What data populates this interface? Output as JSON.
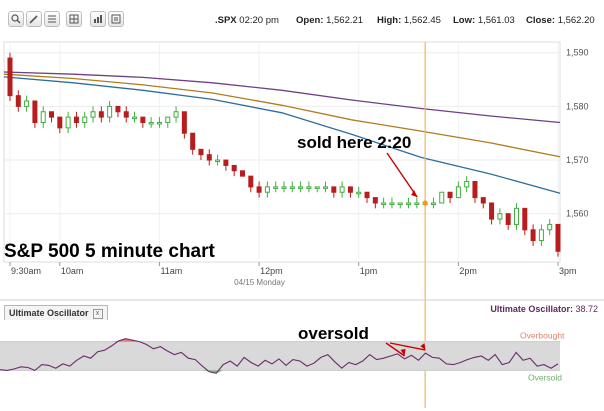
{
  "toolbar": {
    "buttons": [
      {
        "icon": "zoom-icon"
      },
      {
        "icon": "pencil-icon"
      },
      {
        "icon": "list-icon"
      },
      {
        "icon": "grid-icon"
      },
      {
        "icon": "bar-chart-icon"
      },
      {
        "icon": "properties-icon"
      }
    ]
  },
  "quote": {
    "symbol": ".SPX",
    "time": "02:20 pm",
    "open_label": "Open:",
    "open": "1,562.21",
    "high_label": "High:",
    "high": "1,562.45",
    "low_label": "Low:",
    "low": "1,561.03",
    "close_label": "Close:",
    "close": "1,562.20"
  },
  "oscillator": {
    "tab_label": "Ultimate Oscillator",
    "tab_close": "x",
    "value_label": "Ultimate Oscillator:",
    "value": "38.72"
  },
  "chart_data": {
    "type": "candlestick",
    "title": "S&P 500 5 minute chart",
    "x_ticks": [
      "9:30am",
      "10am",
      "11am",
      "12pm",
      "1pm",
      "2pm",
      "3pm"
    ],
    "date_label": "04/15 Monday",
    "y_ticks": [
      1560,
      1570,
      1580,
      1590
    ],
    "ylim": [
      1551,
      1592
    ],
    "annotations": [
      {
        "text": "sold here 2:20",
        "bar": 50
      },
      {
        "text": "oversold",
        "bars": [
          48,
          50
        ]
      }
    ],
    "candles": [
      [
        1589,
        1590,
        1581,
        1582
      ],
      [
        1582,
        1583,
        1579,
        1580
      ],
      [
        1580,
        1582,
        1579,
        1581
      ],
      [
        1581,
        1581,
        1576,
        1577
      ],
      [
        1577,
        1580,
        1576,
        1579
      ],
      [
        1579,
        1579,
        1577,
        1578
      ],
      [
        1578,
        1578,
        1575,
        1576
      ],
      [
        1576,
        1579,
        1575,
        1578
      ],
      [
        1578,
        1579,
        1576,
        1577
      ],
      [
        1577,
        1579,
        1576,
        1578
      ],
      [
        1578,
        1580,
        1577,
        1579
      ],
      [
        1579,
        1580,
        1577,
        1578
      ],
      [
        1578,
        1581,
        1577,
        1580
      ],
      [
        1580,
        1580,
        1578,
        1579
      ],
      [
        1579,
        1580,
        1577,
        1578
      ],
      [
        1578,
        1579,
        1577,
        1578
      ],
      [
        1578,
        1578,
        1576,
        1577
      ],
      [
        1577,
        1578,
        1576,
        1577
      ],
      [
        1577,
        1578,
        1576,
        1577
      ],
      [
        1577,
        1578,
        1576,
        1578
      ],
      [
        1578,
        1580,
        1577,
        1579
      ],
      [
        1579,
        1579,
        1574,
        1575
      ],
      [
        1575,
        1575,
        1571,
        1572
      ],
      [
        1572,
        1572,
        1570,
        1571
      ],
      [
        1571,
        1572,
        1569,
        1570
      ],
      [
        1570,
        1571,
        1569,
        1570
      ],
      [
        1570,
        1570,
        1568,
        1569
      ],
      [
        1569,
        1569,
        1567,
        1568
      ],
      [
        1568,
        1568,
        1567,
        1567
      ],
      [
        1567,
        1567,
        1564,
        1565
      ],
      [
        1565,
        1566,
        1563,
        1564
      ],
      [
        1564,
        1566,
        1563,
        1565
      ],
      [
        1565,
        1566,
        1564,
        1565
      ],
      [
        1565,
        1566,
        1564,
        1565
      ],
      [
        1565,
        1566,
        1564,
        1565
      ],
      [
        1565,
        1566,
        1564,
        1565
      ],
      [
        1565,
        1566,
        1564,
        1565
      ],
      [
        1565,
        1565,
        1564,
        1565
      ],
      [
        1565,
        1566,
        1564,
        1565
      ],
      [
        1565,
        1565,
        1563,
        1564
      ],
      [
        1564,
        1566,
        1563,
        1565
      ],
      [
        1565,
        1565,
        1563,
        1564
      ],
      [
        1564,
        1565,
        1563,
        1564
      ],
      [
        1564,
        1564,
        1562,
        1563
      ],
      [
        1563,
        1563,
        1561,
        1562
      ],
      [
        1562,
        1563,
        1561,
        1562
      ],
      [
        1562,
        1563,
        1561,
        1562
      ],
      [
        1562,
        1562,
        1561,
        1562
      ],
      [
        1562,
        1563,
        1561,
        1562
      ],
      [
        1562,
        1563,
        1561,
        1562
      ],
      [
        1562,
        1562,
        1561,
        1562
      ],
      [
        1562,
        1563,
        1561,
        1562
      ],
      [
        1562,
        1564,
        1562,
        1564
      ],
      [
        1564,
        1564,
        1562,
        1563
      ],
      [
        1563,
        1566,
        1563,
        1565
      ],
      [
        1565,
        1567,
        1564,
        1566
      ],
      [
        1566,
        1566,
        1562,
        1563
      ],
      [
        1563,
        1563,
        1561,
        1562
      ],
      [
        1562,
        1562,
        1558,
        1559
      ],
      [
        1559,
        1561,
        1558,
        1560
      ],
      [
        1560,
        1560,
        1557,
        1558
      ],
      [
        1558,
        1562,
        1557,
        1561
      ],
      [
        1561,
        1561,
        1556,
        1557
      ],
      [
        1557,
        1558,
        1554,
        1555
      ],
      [
        1555,
        1558,
        1554,
        1557
      ],
      [
        1557,
        1559,
        1556,
        1558
      ],
      [
        1558,
        1558,
        1552,
        1553
      ]
    ],
    "moving_averages": [
      {
        "color": "#6f3f84",
        "values": [
          1586.4,
          1586.0,
          1585.4,
          1584.4,
          1583.0,
          1581.2,
          1579.6,
          1578.2,
          1577.0
        ]
      },
      {
        "color": "#b07d1e",
        "values": [
          1586.0,
          1585.2,
          1584.0,
          1582.5,
          1580.2,
          1577.5,
          1575.4,
          1573.2,
          1570.6
        ]
      },
      {
        "color": "#2d6e9e",
        "values": [
          1585.5,
          1584.4,
          1583.0,
          1581.3,
          1578.8,
          1574.8,
          1570.5,
          1567.4,
          1563.8
        ]
      }
    ],
    "ultimate_oscillator": {
      "ylim": [
        0,
        100
      ],
      "overbought": 70,
      "oversold": 30,
      "overbought_label": "Overbought",
      "oversold_label": "Oversold",
      "values": [
        31,
        30,
        32,
        35,
        34,
        30,
        38,
        37,
        33,
        39,
        36,
        44,
        50,
        47,
        56,
        58,
        64,
        71,
        74,
        72,
        70,
        66,
        60,
        63,
        57,
        52,
        55,
        47,
        45,
        36,
        28,
        26,
        38,
        43,
        36,
        48,
        41,
        36,
        44,
        39,
        46,
        37,
        45,
        43,
        36,
        40,
        48,
        52,
        42,
        33,
        41,
        38,
        43,
        52,
        45,
        47,
        50,
        53,
        46,
        51,
        44,
        54,
        48,
        47,
        39,
        38,
        41,
        45,
        48,
        50,
        44,
        52,
        38,
        41,
        55,
        44,
        47,
        36,
        38,
        33,
        39
      ]
    }
  }
}
